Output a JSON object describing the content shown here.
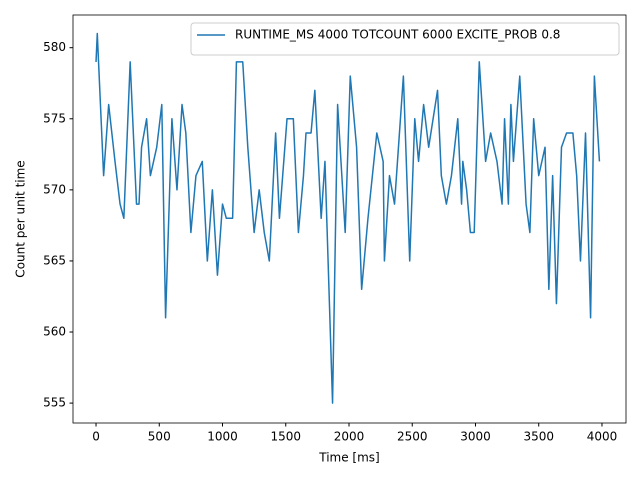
{
  "chart_data": {
    "type": "line",
    "xlabel": "Time [ms]",
    "ylabel": "Count per unit time",
    "x": [
      0,
      10,
      60,
      100,
      150,
      190,
      220,
      270,
      320,
      340,
      360,
      400,
      430,
      480,
      520,
      550,
      600,
      640,
      680,
      710,
      750,
      790,
      840,
      880,
      920,
      960,
      1000,
      1030,
      1080,
      1110,
      1160,
      1200,
      1250,
      1290,
      1330,
      1370,
      1420,
      1450,
      1510,
      1560,
      1600,
      1640,
      1660,
      1700,
      1730,
      1780,
      1810,
      1870,
      1910,
      1970,
      2010,
      2060,
      2100,
      2150,
      2220,
      2270,
      2280,
      2320,
      2360,
      2430,
      2480,
      2520,
      2550,
      2590,
      2630,
      2700,
      2730,
      2770,
      2810,
      2860,
      2890,
      2900,
      2930,
      2960,
      2990,
      3030,
      3080,
      3120,
      3170,
      3210,
      3230,
      3260,
      3280,
      3300,
      3350,
      3400,
      3430,
      3460,
      3500,
      3550,
      3580,
      3610,
      3640,
      3680,
      3720,
      3770,
      3800,
      3830,
      3870,
      3910,
      3940,
      3980
    ],
    "series": [
      {
        "name": "RUNTIME_MS 4000 TOTCOUNT 6000 EXCITE_PROB 0.8",
        "color": "#1f77b4",
        "values": [
          579,
          581,
          571,
          576,
          572,
          569,
          568,
          579,
          569,
          569,
          573,
          575,
          571,
          573,
          576,
          561,
          575,
          570,
          576,
          574,
          567,
          571,
          572,
          565,
          570,
          564,
          569,
          568,
          568,
          579,
          579,
          573,
          567,
          570,
          567,
          565,
          574,
          568,
          575,
          575,
          567,
          571,
          574,
          574,
          577,
          568,
          572,
          555,
          576,
          567,
          578,
          573,
          563,
          568,
          574,
          572,
          565,
          571,
          569,
          578,
          565,
          575,
          572,
          576,
          573,
          577,
          571,
          569,
          571,
          575,
          569,
          572,
          570,
          567,
          567,
          579,
          572,
          574,
          572,
          569,
          575,
          569,
          576,
          572,
          578,
          569,
          567,
          575,
          571,
          573,
          563,
          571,
          562,
          573,
          574,
          574,
          571,
          565,
          574,
          561,
          578,
          572
        ]
      }
    ],
    "xlim": [
      -182,
      4190
    ],
    "ylim": [
      553.6,
      582.3
    ],
    "xticks": [
      0,
      500,
      1000,
      1500,
      2000,
      2500,
      3000,
      3500,
      4000
    ],
    "yticks": [
      555,
      560,
      565,
      570,
      575,
      580
    ],
    "legend": "upper right"
  }
}
